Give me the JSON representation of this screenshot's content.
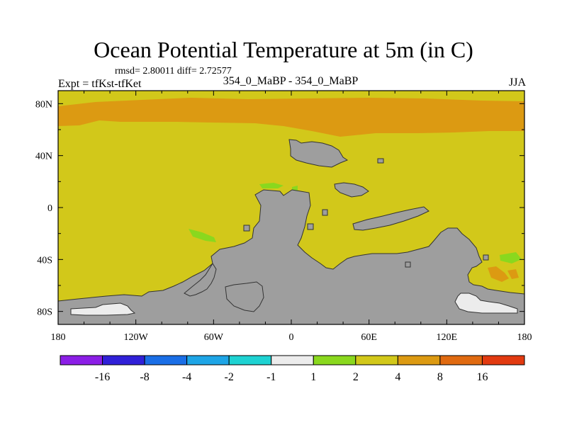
{
  "chart_data": {
    "type": "heatmap",
    "title": "Ocean Potential Temperature at 5m (in C)",
    "stats": "rmsd= 2.80011 diff= 2.72577",
    "experiment": "Expt = tfKst-tfKet",
    "center_label": "354_0_MaBP - 354_0_MaBP",
    "season": "JJA",
    "xlim": [
      -180,
      180
    ],
    "ylim": [
      -90,
      90
    ],
    "x_ticks": [
      -180,
      -120,
      -60,
      0,
      60,
      120,
      180
    ],
    "x_tick_labels": [
      "180",
      "120W",
      "60W",
      "0",
      "60E",
      "120E",
      "180"
    ],
    "y_ticks": [
      80,
      40,
      0,
      -40,
      -80
    ],
    "y_tick_labels": [
      "80N",
      "40N",
      "0",
      "40S",
      "80S"
    ],
    "dominant_value_range": "2 to 4",
    "colorbar": {
      "colors": [
        "#8b1ee6",
        "#3020d8",
        "#1a6ee6",
        "#1ea5e6",
        "#1ed2d2",
        "#ececec",
        "#8ad81e",
        "#d2c81a",
        "#dc9a12",
        "#e06a10",
        "#e23a10"
      ],
      "boundaries": [
        "-16",
        "-8",
        "-4",
        "-2",
        "-1",
        "1",
        "2",
        "4",
        "8",
        "16"
      ]
    },
    "colors": {
      "background_field": "#d2c81a",
      "warm_band": "#dc9a12",
      "land": "#9e9e9e",
      "small_change": "#ececec",
      "cool_patch": "#8ad81e"
    }
  }
}
